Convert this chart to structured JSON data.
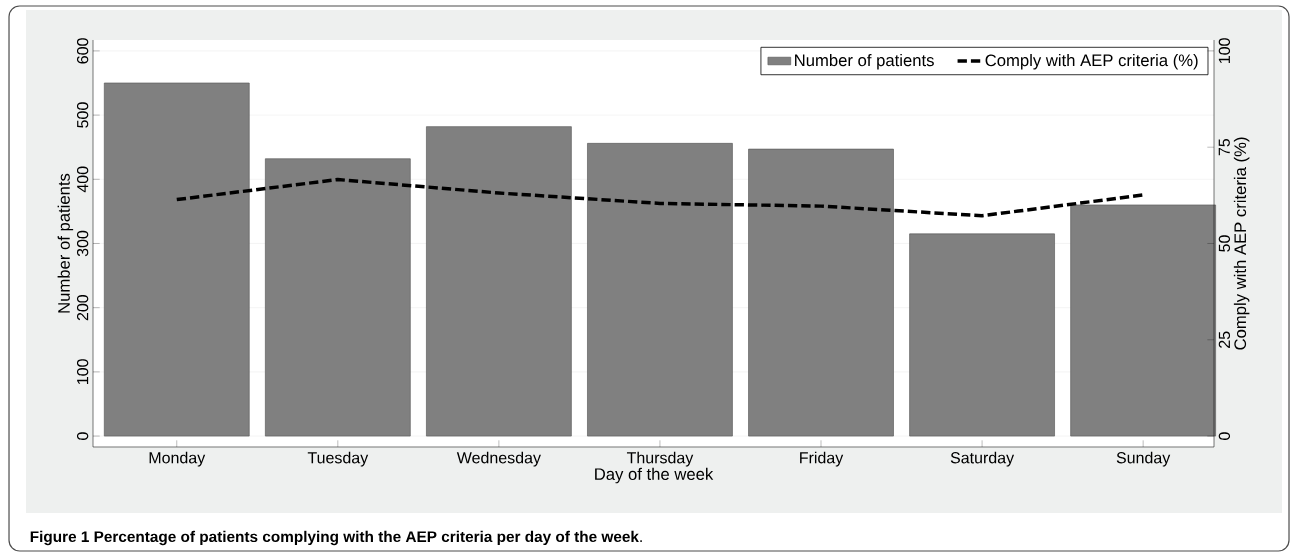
{
  "chart_data": {
    "type": "bar",
    "categories": [
      "Monday",
      "Tuesday",
      "Wednesday",
      "Thursday",
      "Friday",
      "Saturday",
      "Sunday"
    ],
    "xlabel": "Day of the week",
    "ylabel": "Number of patients",
    "y2label": "Comply with AEP criteria (%)",
    "ylim": [
      -17,
      617
    ],
    "yticks": [
      0,
      100,
      200,
      300,
      400,
      500,
      600
    ],
    "y2lim": [
      -2.83,
      102.83
    ],
    "y2ticks": [
      0,
      25,
      50,
      75,
      100
    ],
    "grid": "y",
    "legend": "top right",
    "annotations": [
      "**Figure 1 Percentage of patients complying with the AEP criteria per day of the week**."
    ],
    "series": [
      {
        "name": "Number of patients",
        "color": "#808080",
        "values": [
          550,
          432,
          482,
          456,
          447,
          315,
          360
        ]
      },
      {
        "name": "Comply with AEP criteria (%)",
        "type": "line",
        "axis": "y2",
        "color": "#000000",
        "line_style": "dashed",
        "marker": "none",
        "values": [
          61.4,
          66.6,
          63.1,
          60.4,
          59.7,
          57.2,
          62.6
        ]
      }
    ]
  }
}
